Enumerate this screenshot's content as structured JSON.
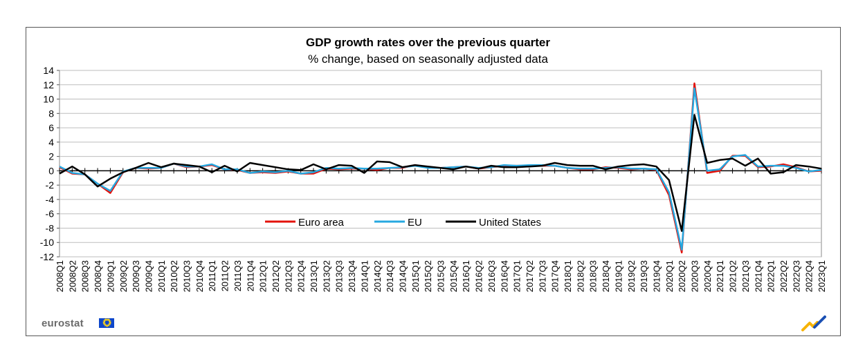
{
  "chart_data": {
    "type": "line",
    "title": "GDP growth rates over the previous quarter",
    "subtitle": "% change, based on seasonally adjusted data",
    "ylim": [
      -12,
      14
    ],
    "yticks": [
      14,
      12,
      10,
      8,
      6,
      4,
      2,
      0,
      -2,
      -4,
      -6,
      -8,
      -10,
      -12
    ],
    "legend_position": "lower-center",
    "grid": true,
    "categories": [
      "2008Q1",
      "2008Q2",
      "2008Q3",
      "2008Q4",
      "2009Q1",
      "2009Q2",
      "2009Q3",
      "2009Q4",
      "2010Q1",
      "2010Q2",
      "2010Q3",
      "2010Q4",
      "2011Q1",
      "2011Q2",
      "2011Q3",
      "2011Q4",
      "2012Q1",
      "2012Q2",
      "2012Q3",
      "2012Q4",
      "2013Q1",
      "2013Q2",
      "2013Q3",
      "2013Q4",
      "2014Q1",
      "2014Q2",
      "2014Q3",
      "2014Q4",
      "2015Q1",
      "2015Q2",
      "2015Q3",
      "2015Q4",
      "2016Q1",
      "2016Q2",
      "2016Q3",
      "2016Q4",
      "2017Q1",
      "2017Q2",
      "2017Q3",
      "2017Q4",
      "2018Q1",
      "2018Q2",
      "2018Q3",
      "2018Q4",
      "2019Q1",
      "2019Q2",
      "2019Q3",
      "2019Q4",
      "2020Q1",
      "2020Q2",
      "2020Q3",
      "2020Q4",
      "2021Q1",
      "2021Q2",
      "2021Q3",
      "2021Q4",
      "2022Q1",
      "2022Q2",
      "2022Q3",
      "2022Q4",
      "2023Q1"
    ],
    "tick_labels": [
      "2008Q1",
      "2008Q2",
      "2008Q3",
      "2008Q4",
      "2009Q1",
      "2009Q2",
      "2009Q3",
      "2009Q4",
      "2010Q1",
      "2010Q2",
      "2010Q3",
      "2010Q4",
      "2011Q1",
      "2011Q2",
      "2011Q3",
      "2011Q4",
      "2012Q1",
      "2012Q2",
      "2012Q3",
      "2012Q4",
      "2013Q1",
      "2013Q2",
      "2013Q3",
      "2013Q4",
      "2014Q1",
      "2014Q2",
      "2014Q3",
      "2014Q4",
      "2015Q1",
      "2015Q2",
      "2015Q3",
      "2015Q4",
      "2016Q1",
      "2016Q2",
      "2016Q3",
      "2016Q4",
      "2017Q1",
      "2017Q2",
      "2017Q3",
      "2017Q4",
      "2018Q1",
      "2018Q2",
      "2018Q3",
      "2018Q4",
      "2019Q1",
      "2019Q2",
      "2019Q3",
      "2019Q4",
      "2020Q1",
      "2020Q2",
      "2020Q3",
      "2020Q4",
      "2021Q1",
      "2021Q2",
      "2021Q3",
      "2021Q4",
      "2022Q1",
      "2022Q2",
      "2022Q3",
      "2022Q4",
      "2023Q1"
    ],
    "series": [
      {
        "name": "Euro area",
        "color": "#e3120b",
        "values": [
          0.5,
          -0.4,
          -0.5,
          -1.8,
          -3.1,
          -0.2,
          0.4,
          0.3,
          0.4,
          1.0,
          0.5,
          0.6,
          0.8,
          0.2,
          0.1,
          -0.3,
          -0.2,
          -0.3,
          -0.1,
          -0.4,
          -0.4,
          0.3,
          0.2,
          0.3,
          0.3,
          0.1,
          0.4,
          0.4,
          0.8,
          0.4,
          0.4,
          0.5,
          0.6,
          0.3,
          0.5,
          0.7,
          0.7,
          0.7,
          0.7,
          0.7,
          0.4,
          0.2,
          0.2,
          0.5,
          0.4,
          0.2,
          0.3,
          0.1,
          -3.4,
          -11.4,
          12.2,
          -0.3,
          0.0,
          2.1,
          2.1,
          0.5,
          0.6,
          0.9,
          0.5,
          -0.1,
          0.0
        ]
      },
      {
        "name": "EU",
        "color": "#26a8e0",
        "values": [
          0.6,
          -0.3,
          -0.5,
          -1.8,
          -2.8,
          -0.1,
          0.4,
          0.4,
          0.4,
          1.0,
          0.6,
          0.6,
          0.9,
          0.2,
          0.2,
          -0.3,
          -0.1,
          -0.2,
          0.0,
          -0.4,
          -0.2,
          0.4,
          0.3,
          0.4,
          0.3,
          0.3,
          0.4,
          0.5,
          0.7,
          0.4,
          0.4,
          0.5,
          0.6,
          0.4,
          0.5,
          0.8,
          0.7,
          0.8,
          0.8,
          0.7,
          0.4,
          0.3,
          0.3,
          0.4,
          0.5,
          0.3,
          0.3,
          0.2,
          -3.0,
          -11.0,
          11.5,
          0.0,
          0.2,
          2.0,
          2.2,
          0.6,
          0.7,
          0.7,
          0.4,
          -0.1,
          0.1
        ]
      },
      {
        "name": "United States",
        "color": "#000000",
        "values": [
          -0.4,
          0.6,
          -0.5,
          -2.2,
          -1.1,
          -0.2,
          0.4,
          1.1,
          0.5,
          1.0,
          0.8,
          0.6,
          -0.2,
          0.7,
          -0.1,
          1.1,
          0.8,
          0.5,
          0.2,
          0.1,
          0.9,
          0.2,
          0.8,
          0.7,
          -0.3,
          1.3,
          1.2,
          0.5,
          0.8,
          0.6,
          0.4,
          0.2,
          0.6,
          0.3,
          0.7,
          0.5,
          0.5,
          0.6,
          0.7,
          1.1,
          0.8,
          0.7,
          0.7,
          0.2,
          0.6,
          0.8,
          0.9,
          0.6,
          -1.3,
          -8.4,
          7.8,
          1.1,
          1.5,
          1.7,
          0.7,
          1.7,
          -0.4,
          -0.2,
          0.8,
          0.6,
          0.3
        ]
      }
    ]
  },
  "branding": {
    "logo_text": "eurostat"
  }
}
